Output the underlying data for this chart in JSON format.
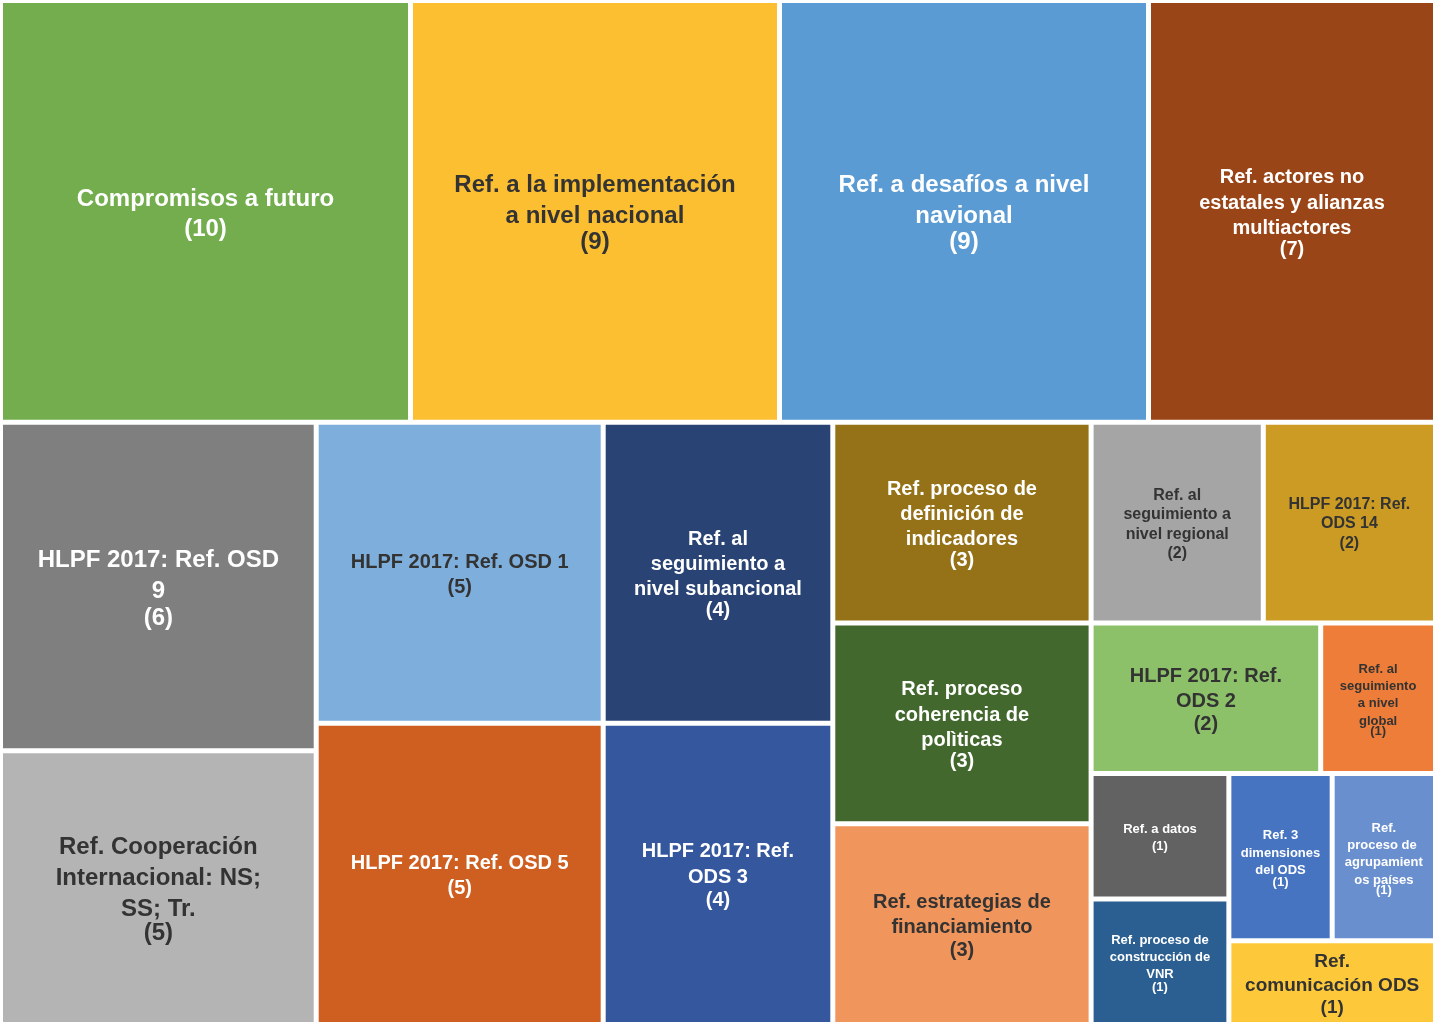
{
  "chart_data": {
    "type": "other",
    "categories": [
      "Compromisos a futuro",
      "Ref. a la implementación a nivel nacional",
      "Ref. a desafíos a nivel navional",
      "Ref. actores no estatales y alianzas multiactores",
      "HLPF 2017: Ref. OSD 9",
      "Ref. Cooperación Internacional: NS; SS; Tr.",
      "HLPF 2017: Ref. OSD 1",
      "HLPF 2017: Ref. OSD 5",
      "Ref. al seguimiento a nivel subancional",
      "HLPF 2017: Ref. ODS 3",
      "Ref. proceso de definición de indicadores",
      "Ref. proceso coherencia de polìticas",
      "Ref. estrategias de financiamiento",
      "Ref. al seguimiento a nivel regional",
      "HLPF 2017: Ref. ODS 14",
      "HLPF 2017: Ref. ODS 2",
      "Ref. al seguimiento a nivel global",
      "Ref. a datos",
      "Ref. proceso de construcción de VNR",
      "Ref. 3 dimensiones del ODS",
      "Ref. proceso de agrupamientos países",
      "Ref. comunicación ODS"
    ],
    "value_labels": [
      "(10)",
      "(9)",
      "(9)",
      "(7)",
      "(6)",
      "(5)",
      "(5)",
      "(5)",
      "(4)",
      "(4)",
      "(3)",
      "(3)",
      "(3)",
      "(2)",
      "(2)",
      "(2)",
      "(1)",
      "(1)",
      "(1)",
      "(1)",
      "(1)",
      "(1)"
    ],
    "values": [
      10,
      9,
      9,
      7,
      6,
      5,
      5,
      5,
      4,
      4,
      3,
      3,
      3,
      2,
      2,
      2,
      1,
      1,
      1,
      1,
      1,
      1
    ],
    "colors": [
      "#73ad4d",
      "#fcbf31",
      "#5b9bd3",
      "#9a4517",
      "#7f7f7f",
      "#b4b4b4",
      "#7eaedb",
      "#cf5f21",
      "#294474",
      "#34579d",
      "#957217",
      "#43682d",
      "#f0955c",
      "#a5a5a5",
      "#cb9b24",
      "#8cc16a",
      "#ed7d39",
      "#626262",
      "#2b5f92",
      "#4674c1",
      "#6a8fcf",
      "#fdc93b"
    ]
  }
}
